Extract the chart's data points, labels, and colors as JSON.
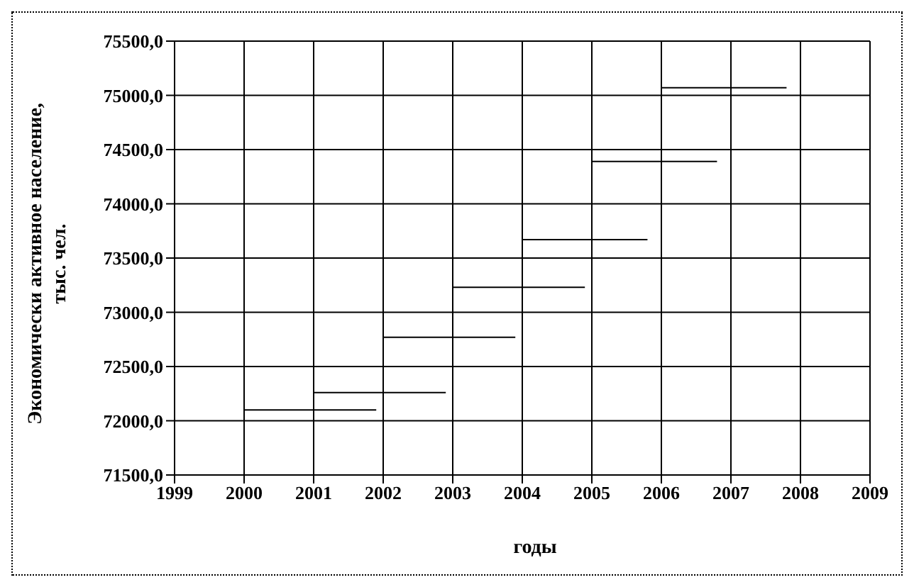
{
  "chart_data": {
    "type": "line",
    "xlabel": "годы",
    "ylabel": "Экономически активное население, тыс. чел.",
    "series": [
      {
        "x": [
          2000,
          2001.9
        ],
        "values": [
          72100,
          72100
        ],
        "color": "#000000"
      },
      {
        "x": [
          2001,
          2002.9
        ],
        "values": [
          72260,
          72260
        ],
        "color": "#000000"
      },
      {
        "x": [
          2002,
          2003.9
        ],
        "values": [
          72770,
          72770
        ],
        "color": "#000000"
      },
      {
        "x": [
          2003,
          2004.9
        ],
        "values": [
          73230,
          73230
        ],
        "color": "#000000"
      },
      {
        "x": [
          2004,
          2005.8
        ],
        "values": [
          73670,
          73670
        ],
        "color": "#000000"
      },
      {
        "x": [
          2005,
          2006.8
        ],
        "values": [
          74390,
          74390
        ],
        "color": "#000000"
      },
      {
        "x": [
          2006,
          2007.8
        ],
        "values": [
          75070,
          75070
        ],
        "color": "#000000"
      }
    ],
    "marker": "none",
    "grid": true,
    "xlim": [
      1999,
      2009
    ],
    "xticks": [
      1999,
      2000,
      2001,
      2002,
      2003,
      2004,
      2005,
      2006,
      2007,
      2008,
      2009
    ],
    "ylim": [
      71500,
      75500
    ],
    "yticks": [
      {
        "value": 71500,
        "label": "71500,0"
      },
      {
        "value": 72000,
        "label": "72000,0"
      },
      {
        "value": 72500,
        "label": "72500,0"
      },
      {
        "value": 73000,
        "label": "73000,0"
      },
      {
        "value": 73500,
        "label": "73500,0"
      },
      {
        "value": 74000,
        "label": "74000,0"
      },
      {
        "value": 74500,
        "label": "74500,0"
      },
      {
        "value": 75000,
        "label": "75000,0"
      },
      {
        "value": 75500,
        "label": "75500,0"
      }
    ]
  }
}
